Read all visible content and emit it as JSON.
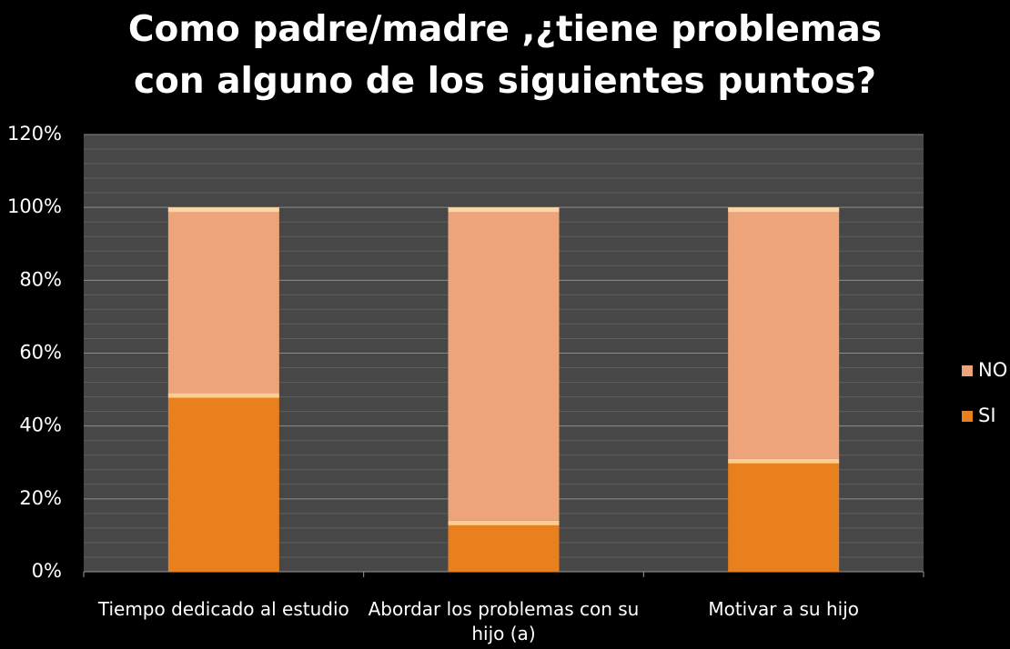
{
  "chart_data": {
    "type": "stacked_bar",
    "title": "Como padre/madre ,¿tiene problemas con alguno de los siguientes puntos?",
    "categories": [
      "Tiempo dedicado al estudio",
      "Abordar los problemas con su hijo (a)",
      "Motivar a su hijo"
    ],
    "series": [
      {
        "name": "SI",
        "color": "#e8801e",
        "values": [
          49,
          14,
          31
        ]
      },
      {
        "name": "NO",
        "color": "#eea47a",
        "values": [
          51,
          86,
          69
        ]
      }
    ],
    "ylim": [
      0,
      120
    ],
    "yticks": [
      {
        "value": 0,
        "label": "0%"
      },
      {
        "value": 20,
        "label": "20%"
      },
      {
        "value": 40,
        "label": "40%"
      },
      {
        "value": 60,
        "label": "60%"
      },
      {
        "value": 80,
        "label": "80%"
      },
      {
        "value": 100,
        "label": "100%"
      },
      {
        "value": 120,
        "label": "120%"
      }
    ],
    "grid": true,
    "legend": "right"
  }
}
